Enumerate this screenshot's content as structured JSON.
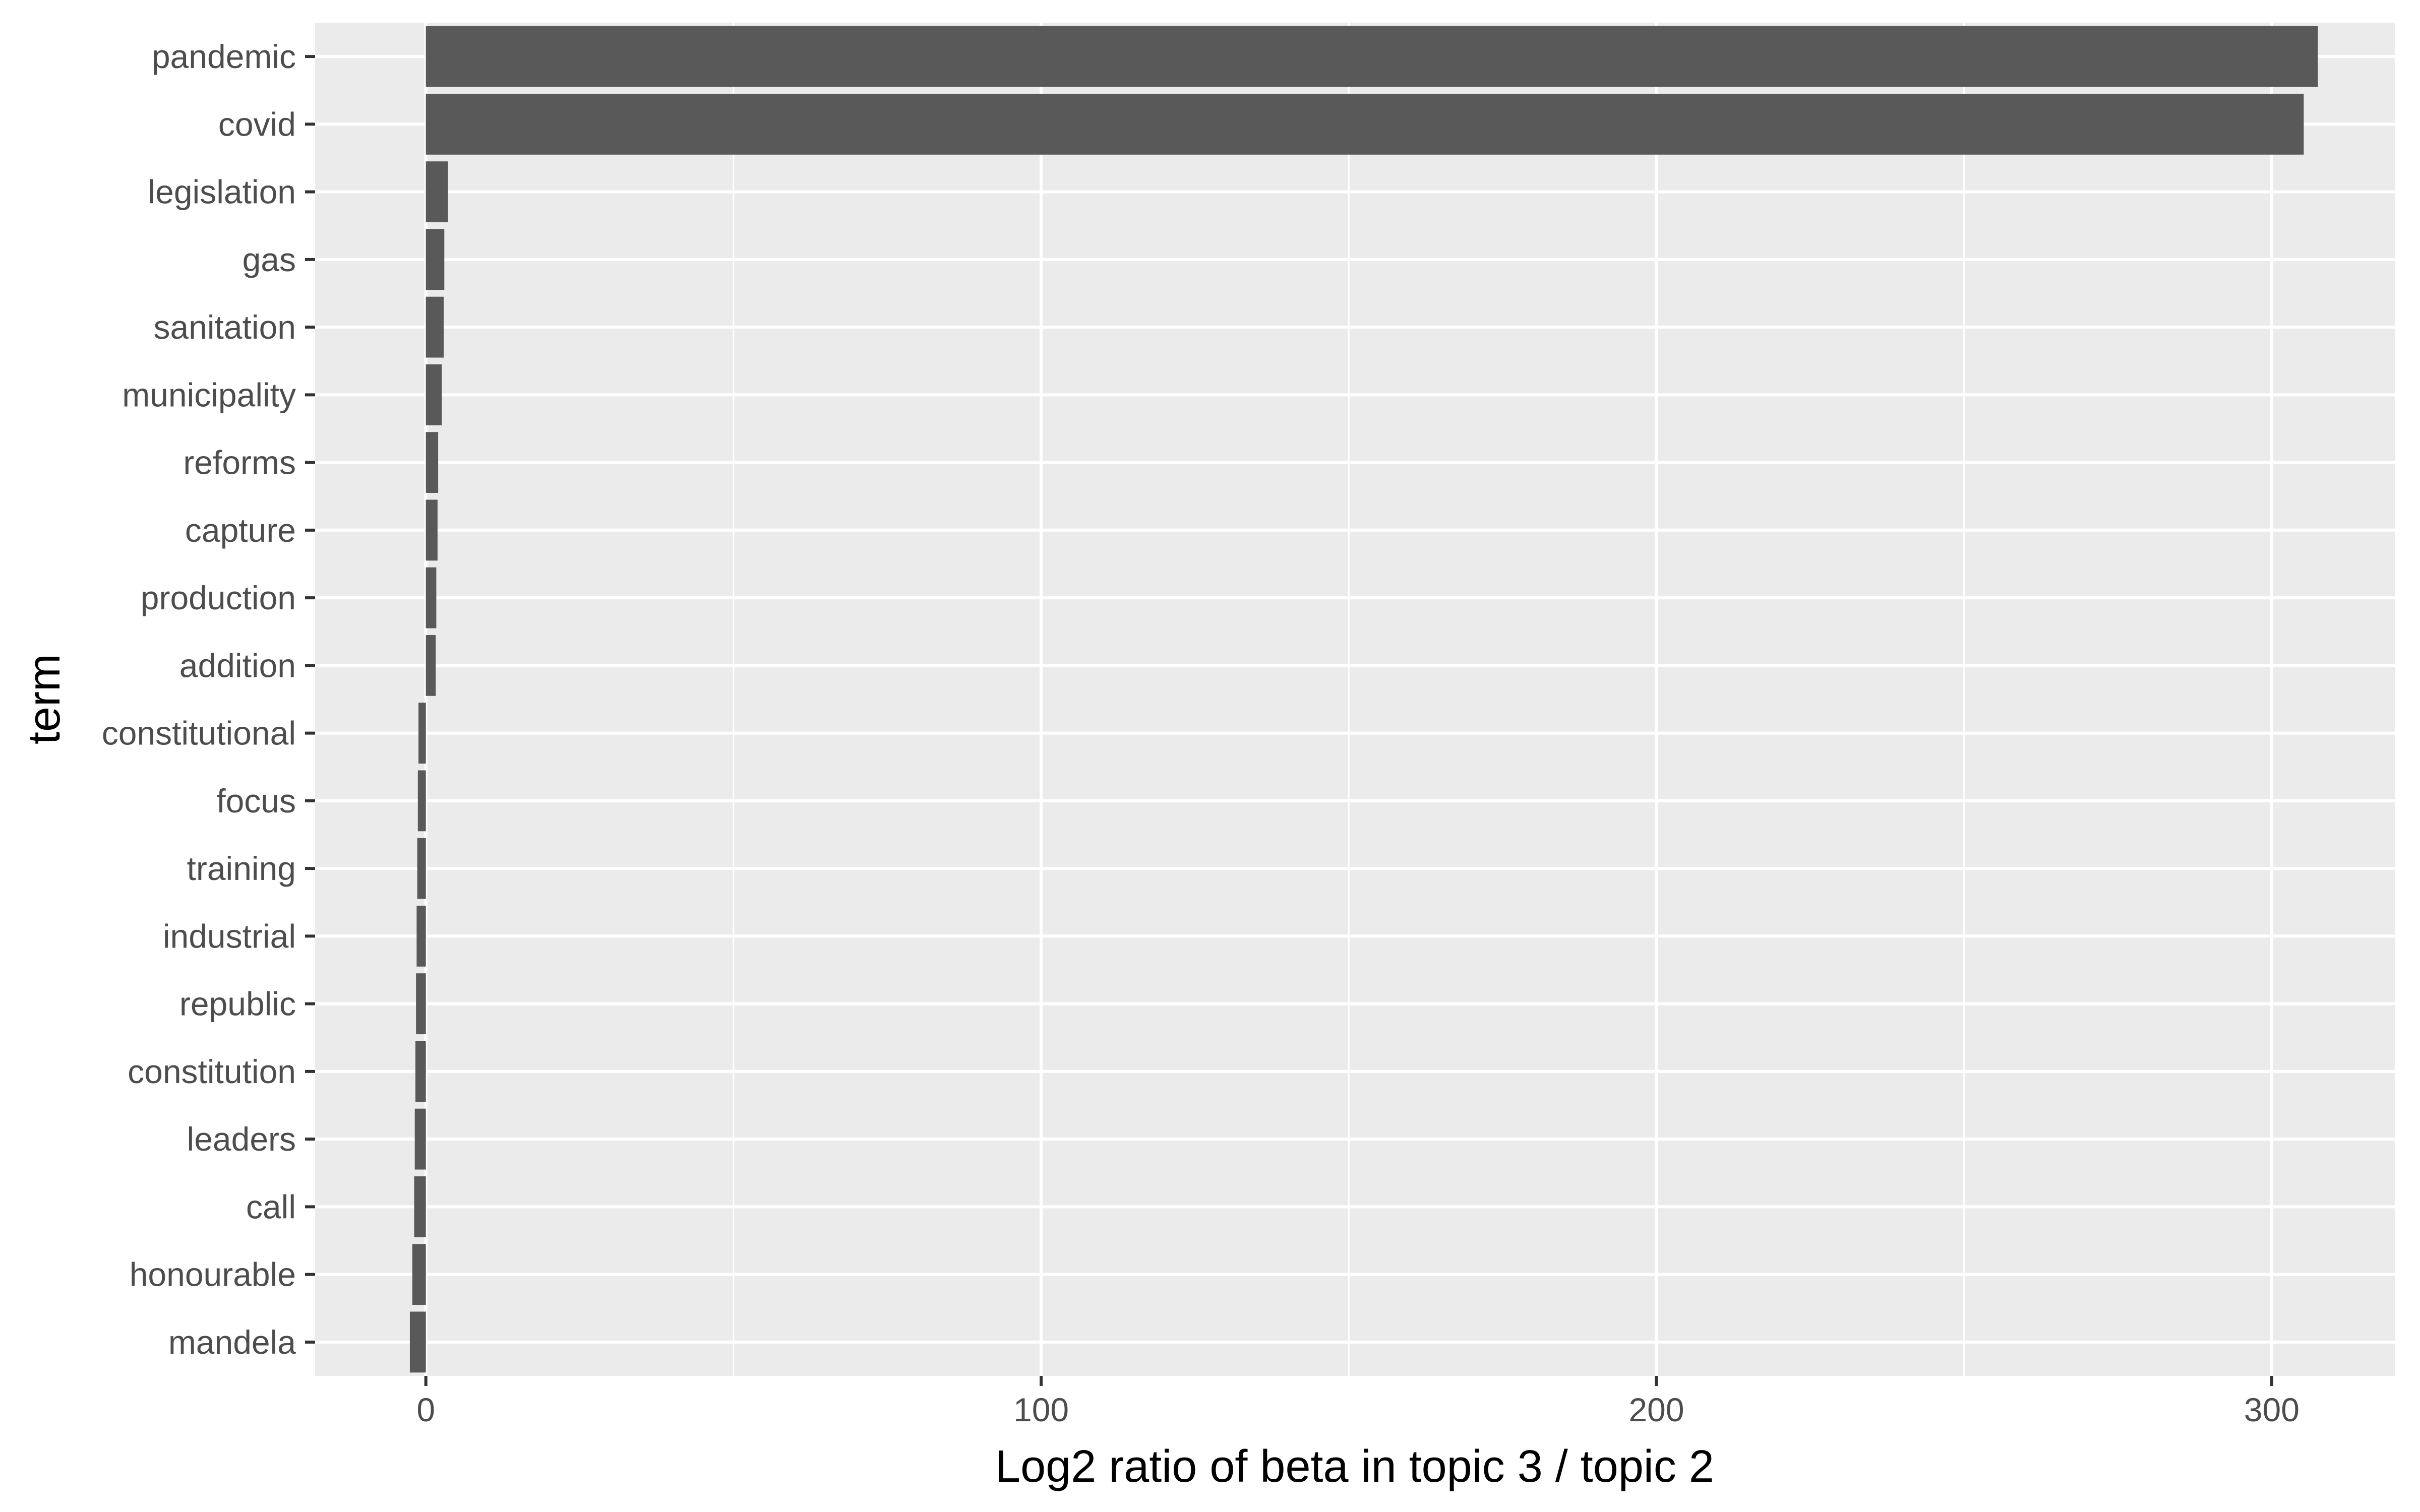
{
  "chart_data": {
    "type": "bar",
    "orientation": "horizontal",
    "xlabel": "Log2 ratio of beta in topic 3 / topic 2",
    "ylabel": "term",
    "xlim": [
      -18,
      320
    ],
    "x_ticks": [
      0,
      100,
      200,
      300
    ],
    "x_tick_labels": [
      "0",
      "100",
      "200",
      "300"
    ],
    "grid": true,
    "categories": [
      "pandemic",
      "covid",
      "legislation",
      "gas",
      "sanitation",
      "municipality",
      "reforms",
      "capture",
      "production",
      "addition",
      "constitutional",
      "focus",
      "training",
      "industrial",
      "republic",
      "constitution",
      "leaders",
      "call",
      "honourable",
      "mandela"
    ],
    "values": [
      307.5,
      305.2,
      3.6,
      3.0,
      2.9,
      2.6,
      2.0,
      1.9,
      1.7,
      1.6,
      -1.2,
      -1.3,
      -1.4,
      -1.5,
      -1.6,
      -1.7,
      -1.8,
      -1.9,
      -2.2,
      -2.6
    ],
    "colors": {
      "panel": "#ebebeb",
      "grid_major": "#ffffff",
      "bar": "#595959",
      "tick_text": "#4d4d4d",
      "tick_mark": "#333333"
    }
  }
}
